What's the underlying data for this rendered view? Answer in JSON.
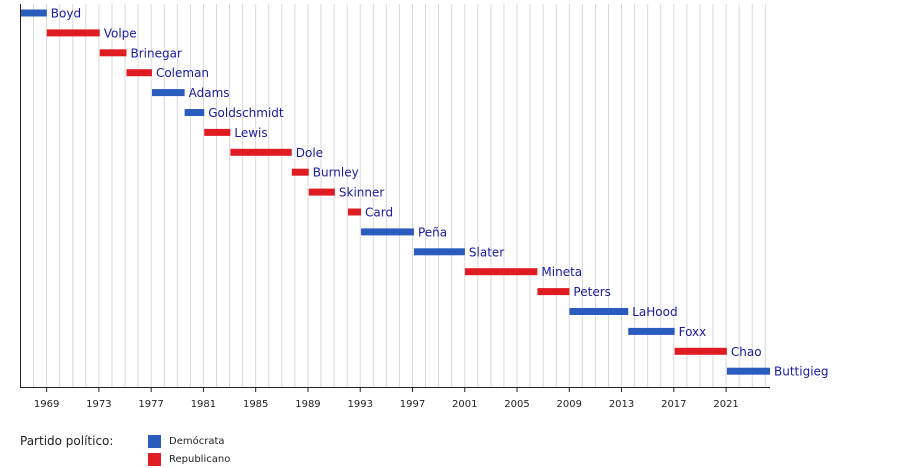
{
  "chart_data": {
    "type": "timeline",
    "x_ticks": [
      1969,
      1973,
      1977,
      1981,
      1985,
      1989,
      1993,
      1997,
      2001,
      2005,
      2009,
      2013,
      2017,
      2021
    ],
    "xlim": [
      1967,
      2024.4
    ],
    "minor_gridlines": "yearly",
    "series": [
      {
        "name": "Demócrata",
        "color": "#2a5cbe"
      },
      {
        "name": "Republicano",
        "color": "#e01c23"
      }
    ],
    "bars": [
      {
        "label": "Boyd",
        "start": 1967.0,
        "end": 1969.05,
        "party": "Demócrata"
      },
      {
        "label": "Volpe",
        "start": 1969.05,
        "end": 1973.1,
        "party": "Republicano"
      },
      {
        "label": "Brinegar",
        "start": 1973.1,
        "end": 1975.15,
        "party": "Republicano"
      },
      {
        "label": "Coleman",
        "start": 1975.15,
        "end": 1977.1,
        "party": "Republicano"
      },
      {
        "label": "Adams",
        "start": 1977.1,
        "end": 1979.6,
        "party": "Demócrata"
      },
      {
        "label": "Goldschmidt",
        "start": 1979.6,
        "end": 1981.1,
        "party": "Demócrata"
      },
      {
        "label": "Lewis",
        "start": 1981.1,
        "end": 1983.1,
        "party": "Republicano"
      },
      {
        "label": "Dole",
        "start": 1983.1,
        "end": 1987.8,
        "party": "Republicano"
      },
      {
        "label": "Burnley",
        "start": 1987.8,
        "end": 1989.1,
        "party": "Republicano"
      },
      {
        "label": "Skinner",
        "start": 1989.1,
        "end": 1991.1,
        "party": "Republicano"
      },
      {
        "label": "Card",
        "start": 1992.1,
        "end": 1993.1,
        "party": "Republicano"
      },
      {
        "label": "Peña",
        "start": 1993.1,
        "end": 1997.15,
        "party": "Demócrata"
      },
      {
        "label": "Slater",
        "start": 1997.15,
        "end": 2001.05,
        "party": "Demócrata"
      },
      {
        "label": "Mineta",
        "start": 2001.05,
        "end": 2006.6,
        "party": "Republicano"
      },
      {
        "label": "Peters",
        "start": 2006.6,
        "end": 2009.05,
        "party": "Republicano"
      },
      {
        "label": "LaHood",
        "start": 2009.05,
        "end": 2013.55,
        "party": "Demócrata"
      },
      {
        "label": "Foxx",
        "start": 2013.55,
        "end": 2017.1,
        "party": "Demócrata"
      },
      {
        "label": "Chao",
        "start": 2017.1,
        "end": 2021.1,
        "party": "Republicano"
      },
      {
        "label": "Buttigieg",
        "start": 2021.1,
        "end": 2024.4,
        "party": "Demócrata"
      }
    ]
  },
  "legend": {
    "title": "Partido político:",
    "items": [
      {
        "label": "Demócrata",
        "color": "#2a5cbe"
      },
      {
        "label": "Republicano",
        "color": "#e01c23"
      }
    ]
  },
  "colors": {
    "label_text": "#1a1aa0",
    "grid": "#d8d8d8",
    "axis": "#222222"
  }
}
